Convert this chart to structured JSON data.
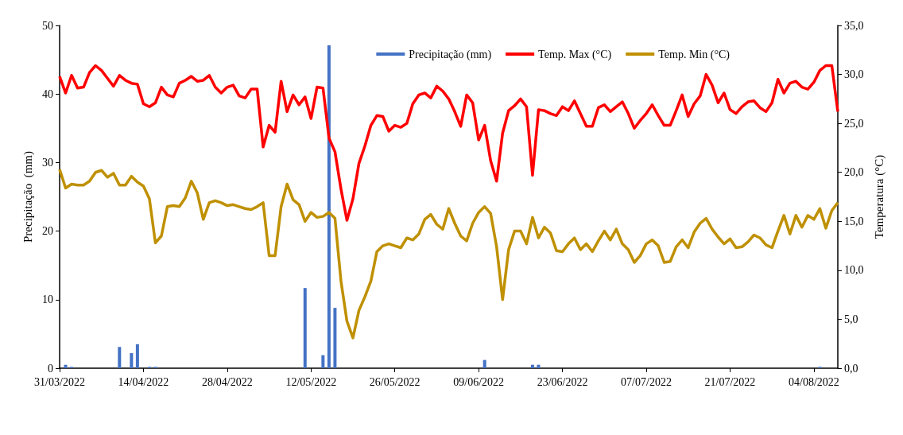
{
  "chart_data": {
    "type": "line",
    "ylabel": "Precipitação  (mm)",
    "y2label": "Temperatura (°C)",
    "x": [
      "2022-03-31",
      "2022-04-01",
      "2022-04-02",
      "2022-04-03",
      "2022-04-04",
      "2022-04-05",
      "2022-04-06",
      "2022-04-07",
      "2022-04-08",
      "2022-04-09",
      "2022-04-10",
      "2022-04-11",
      "2022-04-12",
      "2022-04-13",
      "2022-04-14",
      "2022-04-15",
      "2022-04-16",
      "2022-04-17",
      "2022-04-18",
      "2022-04-19",
      "2022-04-20",
      "2022-04-21",
      "2022-04-22",
      "2022-04-23",
      "2022-04-24",
      "2022-04-25",
      "2022-04-26",
      "2022-04-27",
      "2022-04-28",
      "2022-04-29",
      "2022-04-30",
      "2022-05-01",
      "2022-05-02",
      "2022-05-03",
      "2022-05-04",
      "2022-05-05",
      "2022-05-06",
      "2022-05-07",
      "2022-05-08",
      "2022-05-09",
      "2022-05-10",
      "2022-05-11",
      "2022-05-12",
      "2022-05-13",
      "2022-05-14",
      "2022-05-15",
      "2022-05-16",
      "2022-05-17",
      "2022-05-18",
      "2022-05-19",
      "2022-05-20",
      "2022-05-21",
      "2022-05-22",
      "2022-05-23",
      "2022-05-24",
      "2022-05-25",
      "2022-05-26",
      "2022-05-27",
      "2022-05-28",
      "2022-05-29",
      "2022-05-30",
      "2022-05-31",
      "2022-06-01",
      "2022-06-02",
      "2022-06-03",
      "2022-06-04",
      "2022-06-05",
      "2022-06-06",
      "2022-06-07",
      "2022-06-08",
      "2022-06-09",
      "2022-06-10",
      "2022-06-11",
      "2022-06-12",
      "2022-06-13",
      "2022-06-14",
      "2022-06-15",
      "2022-06-16",
      "2022-06-17",
      "2022-06-18",
      "2022-06-19",
      "2022-06-20",
      "2022-06-21",
      "2022-06-22",
      "2022-06-23",
      "2022-06-24",
      "2022-06-25",
      "2022-06-26",
      "2022-06-27",
      "2022-06-28",
      "2022-06-29",
      "2022-06-30",
      "2022-07-01",
      "2022-07-02",
      "2022-07-03",
      "2022-07-04",
      "2022-07-05",
      "2022-07-06",
      "2022-07-07",
      "2022-07-08",
      "2022-07-09",
      "2022-07-10",
      "2022-07-11",
      "2022-07-12",
      "2022-07-13",
      "2022-07-14",
      "2022-07-15",
      "2022-07-16",
      "2022-07-17",
      "2022-07-18",
      "2022-07-19",
      "2022-07-20",
      "2022-07-21",
      "2022-07-22",
      "2022-07-23",
      "2022-07-24",
      "2022-07-25",
      "2022-07-26",
      "2022-07-27",
      "2022-07-28",
      "2022-07-29",
      "2022-07-30",
      "2022-07-31",
      "2022-08-01",
      "2022-08-02",
      "2022-08-03",
      "2022-08-04",
      "2022-08-05",
      "2022-08-06",
      "2022-08-07",
      "2022-08-08"
    ],
    "series": [
      {
        "name": "Precipitação (mm)",
        "type": "bar",
        "color": "#4472c4",
        "x": [
          "2022-04-01",
          "2022-04-02",
          "2022-04-10",
          "2022-04-12",
          "2022-04-13",
          "2022-04-15",
          "2022-04-16",
          "2022-05-11",
          "2022-05-14",
          "2022-05-15",
          "2022-05-16",
          "2022-06-10",
          "2022-06-18",
          "2022-06-19",
          "2022-08-05"
        ],
        "values": [
          0.5,
          0.2,
          3.1,
          2.2,
          3.5,
          0.2,
          0.2,
          11.7,
          1.9,
          47.1,
          8.8,
          1.2,
          0.5,
          0.5,
          0.2
        ]
      },
      {
        "name": "Temp. Max (°C)",
        "axis": "y2",
        "color": "#ff0000",
        "values": [
          29.8,
          28.1,
          29.9,
          28.6,
          28.7,
          30.2,
          30.9,
          30.4,
          29.6,
          28.8,
          29.9,
          29.4,
          29.1,
          29.0,
          27.0,
          26.7,
          27.1,
          28.7,
          27.9,
          27.7,
          29.1,
          29.4,
          29.8,
          29.3,
          29.4,
          29.9,
          28.7,
          28.1,
          28.7,
          28.9,
          27.8,
          27.6,
          28.5,
          28.5,
          22.6,
          24.8,
          24.1,
          29.3,
          26.2,
          27.9,
          26.9,
          27.7,
          25.5,
          28.7,
          28.6,
          23.5,
          22.1,
          18.3,
          15.1,
          17.3,
          20.9,
          22.7,
          24.8,
          25.8,
          25.7,
          24.2,
          24.8,
          24.6,
          25.0,
          27.0,
          27.9,
          28.1,
          27.6,
          28.8,
          28.3,
          27.5,
          26.2,
          24.7,
          27.9,
          27.1,
          23.3,
          24.8,
          21.2,
          19.1,
          24.0,
          26.3,
          26.8,
          27.5,
          26.7,
          19.7,
          26.4,
          26.3,
          26.0,
          25.8,
          26.7,
          26.3,
          27.3,
          26.0,
          24.7,
          24.7,
          26.6,
          26.9,
          26.2,
          26.7,
          27.2,
          26.0,
          24.5,
          25.3,
          26.0,
          26.9,
          25.8,
          24.8,
          24.8,
          26.3,
          27.9,
          25.7,
          27.0,
          27.8,
          30.0,
          28.9,
          27.1,
          28.1,
          26.4,
          26.0,
          26.7,
          27.2,
          27.3,
          26.6,
          26.2,
          27.1,
          29.5,
          28.1,
          29.1,
          29.3,
          28.7,
          28.5,
          29.2,
          30.4,
          30.9,
          30.9,
          26.2
        ]
      },
      {
        "name": "Temp. Min (°C)",
        "axis": "y2",
        "color": "#bf9000",
        "values": [
          20.3,
          18.4,
          18.8,
          18.7,
          18.7,
          19.1,
          20.0,
          20.2,
          19.5,
          19.9,
          18.7,
          18.7,
          19.6,
          19.0,
          18.6,
          17.3,
          12.8,
          13.5,
          16.5,
          16.6,
          16.5,
          17.4,
          19.1,
          17.9,
          15.2,
          16.9,
          17.1,
          16.9,
          16.6,
          16.7,
          16.5,
          16.3,
          16.2,
          16.5,
          16.9,
          11.5,
          11.5,
          16.5,
          18.8,
          17.2,
          16.7,
          15.0,
          15.9,
          15.4,
          15.5,
          15.9,
          15.3,
          8.9,
          4.8,
          3.1,
          5.9,
          7.3,
          8.9,
          11.9,
          12.5,
          12.7,
          12.5,
          12.3,
          13.3,
          13.1,
          13.7,
          15.2,
          15.7,
          14.7,
          14.2,
          16.3,
          14.8,
          13.5,
          13.0,
          14.8,
          15.9,
          16.5,
          15.8,
          12.4,
          7.0,
          12.1,
          14.0,
          14.0,
          12.7,
          15.4,
          13.3,
          14.4,
          13.8,
          12.0,
          11.9,
          12.7,
          13.3,
          12.1,
          12.7,
          11.9,
          13.0,
          14.0,
          13.1,
          14.2,
          12.7,
          12.1,
          10.8,
          11.5,
          12.7,
          13.1,
          12.5,
          10.8,
          10.9,
          12.4,
          13.1,
          12.3,
          13.9,
          14.8,
          15.3,
          14.2,
          13.4,
          12.7,
          13.2,
          12.3,
          12.4,
          12.9,
          13.6,
          13.3,
          12.6,
          12.3,
          14.0,
          15.6,
          13.7,
          15.6,
          14.4,
          15.6,
          15.2,
          16.3,
          14.3,
          16.1,
          16.9
        ]
      }
    ],
    "xlim": [
      "2022-03-31",
      "2022-08-08"
    ],
    "xticks": [
      {
        "value": "2022-03-31",
        "label": "31/03/2022"
      },
      {
        "value": "2022-04-14",
        "label": "14/04/2022"
      },
      {
        "value": "2022-04-28",
        "label": "28/04/2022"
      },
      {
        "value": "2022-05-12",
        "label": "12/05/2022"
      },
      {
        "value": "2022-05-26",
        "label": "26/05/2022"
      },
      {
        "value": "2022-06-09",
        "label": "09/06/2022"
      },
      {
        "value": "2022-06-23",
        "label": "23/06/2022"
      },
      {
        "value": "2022-07-07",
        "label": "07/07/2022"
      },
      {
        "value": "2022-07-21",
        "label": "21/07/2022"
      },
      {
        "value": "2022-08-04",
        "label": "04/08/2022"
      }
    ],
    "ylim": [
      0,
      50
    ],
    "yticks": [
      0,
      10,
      20,
      30,
      40,
      50
    ],
    "y2lim": [
      0,
      35
    ],
    "y2ticks": [
      {
        "value": 0,
        "label": "0,0"
      },
      {
        "value": 5,
        "label": "5,0"
      },
      {
        "value": 10,
        "label": "10,0"
      },
      {
        "value": 15,
        "label": "15,0"
      },
      {
        "value": 20,
        "label": "20,0"
      },
      {
        "value": 25,
        "label": "25,0"
      },
      {
        "value": 30,
        "label": "30,0"
      },
      {
        "value": 35,
        "label": "35,0"
      }
    ],
    "grid": false,
    "legend": "top right",
    "marker": "none",
    "line_style": "solid"
  }
}
